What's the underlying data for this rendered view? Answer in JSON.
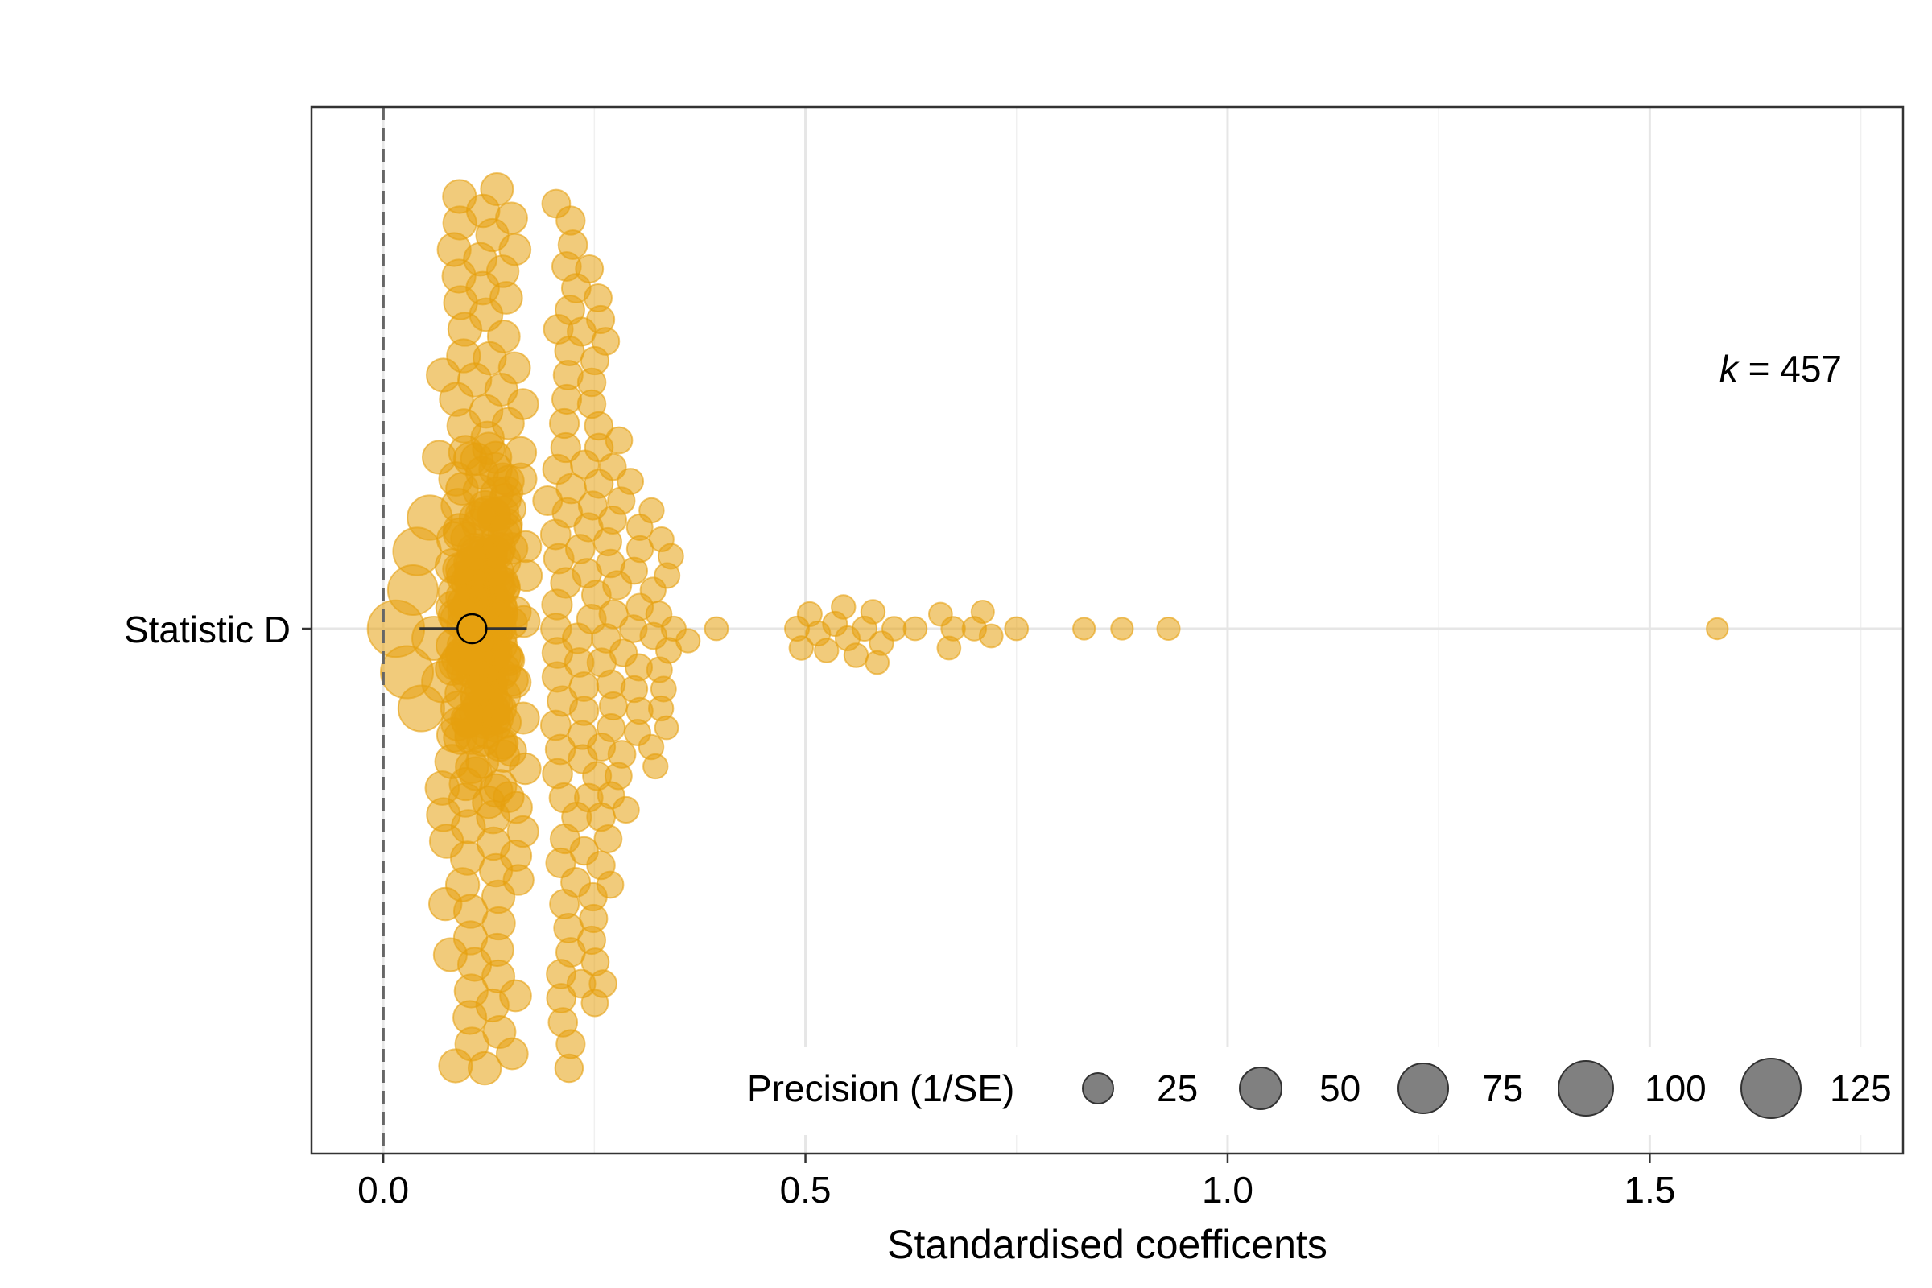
{
  "chart_data": {
    "type": "scatter",
    "subtype": "orchard",
    "title": "",
    "xlabel": "Standardised coefficents",
    "ylabel": "",
    "xlim": [
      -0.085,
      1.8
    ],
    "x_ticks": [
      "0.0",
      "0.5",
      "1.0",
      "1.5"
    ],
    "x_tick_values": [
      0,
      0.5,
      1.0,
      1.5
    ],
    "x_minor_gridlines": [
      0.25,
      0.75,
      1.25,
      1.75
    ],
    "categories": [
      "Statistic D"
    ],
    "reference_line": {
      "x": 0,
      "style": "dashed"
    },
    "grid": true,
    "legend_position": "bottom-right",
    "annotation": {
      "italic": "k",
      "text": " = 457"
    },
    "k": 457,
    "colors": {
      "points": "#E6A00F",
      "estimate_fill": "#E6A00F",
      "ci_line": "#333333",
      "legend_points": "#555555"
    },
    "size_legend": {
      "title": "Precision (1/SE)",
      "values": [
        25,
        50,
        75,
        100,
        125
      ],
      "labels": [
        "25",
        "50",
        "75",
        "100",
        "125"
      ]
    },
    "summary": {
      "estimate": 0.105,
      "ci_low": 0.043,
      "ci_high": 0.17
    },
    "points": [
      {
        "x": 0.015,
        "p": 135
      },
      {
        "x": 0.028,
        "p": 112
      },
      {
        "x": 0.035,
        "p": 100
      },
      {
        "x": 0.04,
        "p": 90
      },
      {
        "x": 0.045,
        "p": 82
      },
      {
        "x": 0.055,
        "p": 76
      },
      {
        "x": 0.06,
        "p": 72
      },
      {
        "x": 0.07,
        "p": 62
      },
      {
        "x": 1.58,
        "p": 10
      },
      {
        "x": 0.93,
        "p": 12
      },
      {
        "x": 0.875,
        "p": 11
      },
      {
        "x": 0.83,
        "p": 11
      },
      {
        "x": 0.75,
        "p": 13
      },
      {
        "x": 0.72,
        "p": 13
      },
      {
        "x": 0.71,
        "p": 12
      },
      {
        "x": 0.7,
        "p": 14
      },
      {
        "x": 0.675,
        "p": 14
      },
      {
        "x": 0.67,
        "p": 13
      },
      {
        "x": 0.66,
        "p": 13
      },
      {
        "x": 0.63,
        "p": 13
      },
      {
        "x": 0.605,
        "p": 14
      },
      {
        "x": 0.59,
        "p": 14
      },
      {
        "x": 0.585,
        "p": 13
      },
      {
        "x": 0.58,
        "p": 14
      },
      {
        "x": 0.57,
        "p": 15
      },
      {
        "x": 0.56,
        "p": 14
      },
      {
        "x": 0.55,
        "p": 15
      },
      {
        "x": 0.545,
        "p": 14
      },
      {
        "x": 0.535,
        "p": 15
      },
      {
        "x": 0.525,
        "p": 14
      },
      {
        "x": 0.515,
        "p": 15
      },
      {
        "x": 0.505,
        "p": 15
      },
      {
        "x": 0.495,
        "p": 14
      },
      {
        "x": 0.49,
        "p": 15
      }
    ]
  }
}
